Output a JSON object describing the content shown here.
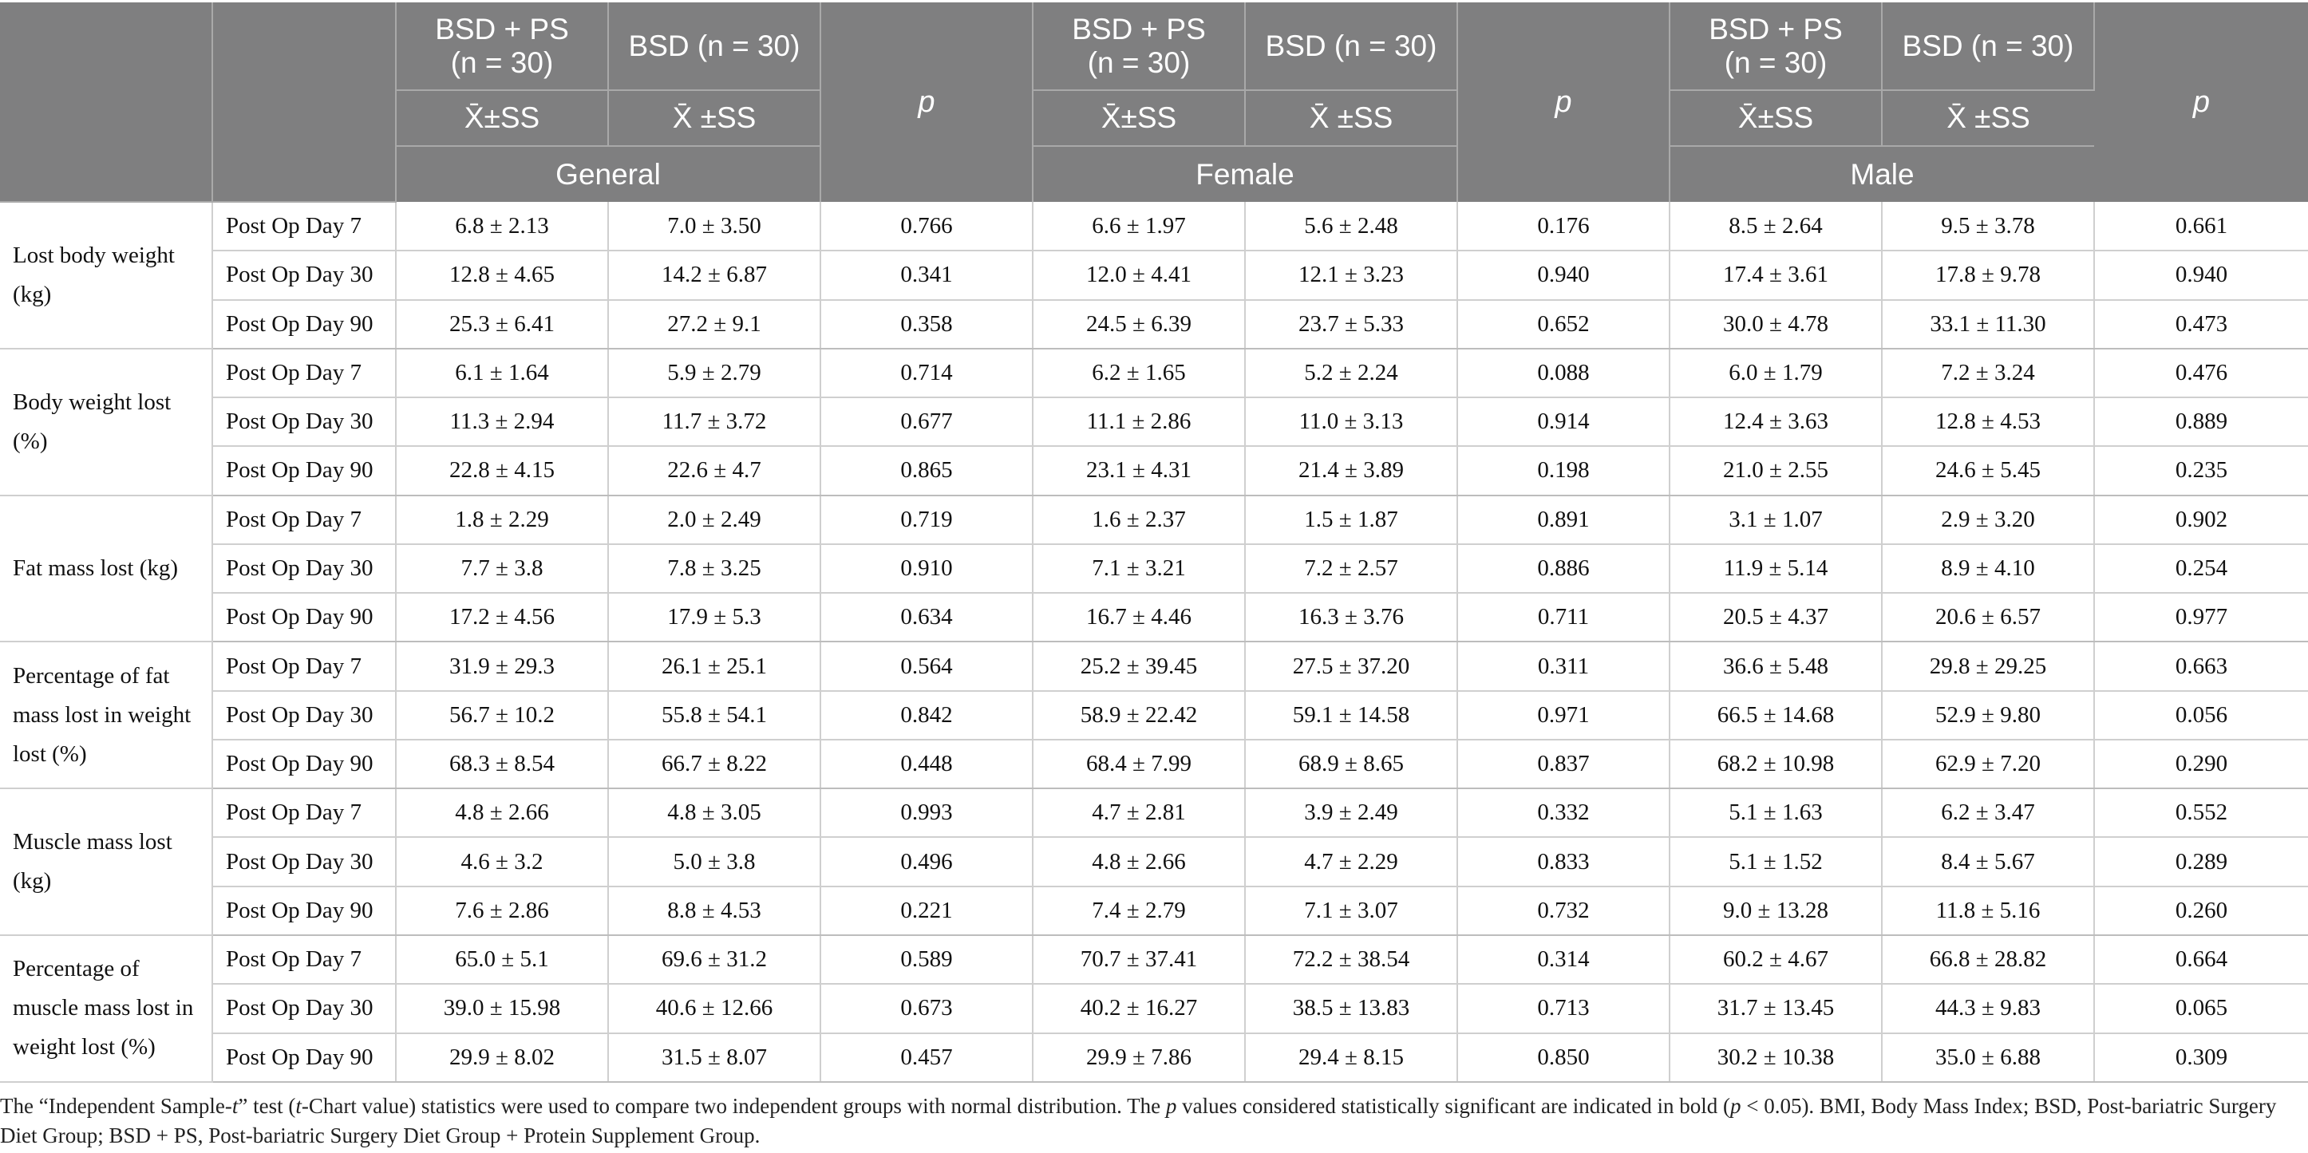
{
  "table": {
    "header": {
      "col_bsd_ps_line1": "BSD + PS",
      "col_bsd_ps_line2": "(n = 30)",
      "col_bsd": "BSD (n = 30)",
      "mean_sd_bsd_ps": "X̄±SS",
      "mean_sd_bsd": "X̄ ±SS",
      "p_label": "p",
      "groups": [
        "General",
        "Female",
        "Male"
      ]
    },
    "measures": [
      {
        "label": "Lost body weight (kg)",
        "rows": [
          {
            "timepoint": "Post Op Day 7",
            "values": [
              "6.8 ± 2.13",
              "7.0 ± 3.50",
              "0.766",
              "6.6 ± 1.97",
              "5.6 ± 2.48",
              "0.176",
              "8.5 ± 2.64",
              "9.5 ± 3.78",
              "0.661"
            ]
          },
          {
            "timepoint": "Post Op Day 30",
            "values": [
              "12.8 ± 4.65",
              "14.2 ± 6.87",
              "0.341",
              "12.0 ± 4.41",
              "12.1 ± 3.23",
              "0.940",
              "17.4 ± 3.61",
              "17.8 ± 9.78",
              "0.940"
            ]
          },
          {
            "timepoint": "Post Op Day 90",
            "values": [
              "25.3 ± 6.41",
              "27.2 ± 9.1",
              "0.358",
              "24.5 ± 6.39",
              "23.7 ± 5.33",
              "0.652",
              "30.0 ± 4.78",
              "33.1 ± 11.30",
              "0.473"
            ]
          }
        ]
      },
      {
        "label": "Body weight lost (%)",
        "rows": [
          {
            "timepoint": "Post Op Day 7",
            "values": [
              "6.1 ± 1.64",
              "5.9 ± 2.79",
              "0.714",
              "6.2 ± 1.65",
              "5.2 ± 2.24",
              "0.088",
              "6.0 ± 1.79",
              "7.2 ± 3.24",
              "0.476"
            ]
          },
          {
            "timepoint": "Post Op Day 30",
            "values": [
              "11.3 ± 2.94",
              "11.7 ± 3.72",
              "0.677",
              "11.1 ± 2.86",
              "11.0 ± 3.13",
              "0.914",
              "12.4 ± 3.63",
              "12.8 ± 4.53",
              "0.889"
            ]
          },
          {
            "timepoint": "Post Op Day 90",
            "values": [
              "22.8 ± 4.15",
              "22.6 ± 4.7",
              "0.865",
              "23.1 ± 4.31",
              "21.4 ± 3.89",
              "0.198",
              "21.0 ± 2.55",
              "24.6 ± 5.45",
              "0.235"
            ]
          }
        ]
      },
      {
        "label": "Fat mass lost (kg)",
        "rows": [
          {
            "timepoint": "Post Op Day 7",
            "values": [
              "1.8 ± 2.29",
              "2.0 ± 2.49",
              "0.719",
              "1.6 ± 2.37",
              "1.5 ± 1.87",
              "0.891",
              "3.1 ± 1.07",
              "2.9 ± 3.20",
              "0.902"
            ]
          },
          {
            "timepoint": "Post Op Day 30",
            "values": [
              "7.7 ± 3.8",
              "7.8 ± 3.25",
              "0.910",
              "7.1 ± 3.21",
              "7.2 ± 2.57",
              "0.886",
              "11.9 ± 5.14",
              "8.9 ± 4.10",
              "0.254"
            ]
          },
          {
            "timepoint": "Post Op Day 90",
            "values": [
              "17.2 ± 4.56",
              "17.9 ± 5.3",
              "0.634",
              "16.7 ± 4.46",
              "16.3 ± 3.76",
              "0.711",
              "20.5 ± 4.37",
              "20.6 ± 6.57",
              "0.977"
            ]
          }
        ]
      },
      {
        "label": "Percentage of fat mass lost in weight lost (%)",
        "rows": [
          {
            "timepoint": "Post Op Day 7",
            "values": [
              "31.9 ± 29.3",
              "26.1 ± 25.1",
              "0.564",
              "25.2 ± 39.45",
              "27.5 ± 37.20",
              "0.311",
              "36.6 ± 5.48",
              "29.8 ± 29.25",
              "0.663"
            ]
          },
          {
            "timepoint": "Post Op Day 30",
            "values": [
              "56.7 ± 10.2",
              "55.8 ± 54.1",
              "0.842",
              "58.9 ± 22.42",
              "59.1 ± 14.58",
              "0.971",
              "66.5 ± 14.68",
              "52.9 ± 9.80",
              "0.056"
            ]
          },
          {
            "timepoint": "Post Op Day 90",
            "values": [
              "68.3 ± 8.54",
              "66.7 ± 8.22",
              "0.448",
              "68.4 ± 7.99",
              "68.9 ± 8.65",
              "0.837",
              "68.2 ± 10.98",
              "62.9 ± 7.20",
              "0.290"
            ]
          }
        ]
      },
      {
        "label": "Muscle mass lost (kg)",
        "rows": [
          {
            "timepoint": "Post Op Day 7",
            "values": [
              "4.8 ± 2.66",
              "4.8 ± 3.05",
              "0.993",
              "4.7 ± 2.81",
              "3.9 ± 2.49",
              "0.332",
              "5.1 ± 1.63",
              "6.2 ± 3.47",
              "0.552"
            ]
          },
          {
            "timepoint": "Post Op Day 30",
            "values": [
              "4.6 ± 3.2",
              "5.0 ± 3.8",
              "0.496",
              "4.8 ± 2.66",
              "4.7 ± 2.29",
              "0.833",
              "5.1 ± 1.52",
              "8.4 ± 5.67",
              "0.289"
            ]
          },
          {
            "timepoint": "Post Op Day 90",
            "values": [
              "7.6 ± 2.86",
              "8.8 ± 4.53",
              "0.221",
              "7.4 ± 2.79",
              "7.1 ± 3.07",
              "0.732",
              "9.0 ± 13.28",
              "11.8 ± 5.16",
              "0.260"
            ]
          }
        ]
      },
      {
        "label": "Percentage of muscle mass lost in weight lost (%)",
        "rows": [
          {
            "timepoint": "Post Op Day 7",
            "values": [
              "65.0 ± 5.1",
              "69.6 ± 31.2",
              "0.589",
              "70.7 ± 37.41",
              "72.2 ± 38.54",
              "0.314",
              "60.2 ± 4.67",
              "66.8 ± 28.82",
              "0.664"
            ]
          },
          {
            "timepoint": "Post Op Day 30",
            "values": [
              "39.0 ± 15.98",
              "40.6 ± 12.66",
              "0.673",
              "40.2 ± 16.27",
              "38.5 ± 13.83",
              "0.713",
              "31.7 ± 13.45",
              "44.3 ± 9.83",
              "0.065"
            ]
          },
          {
            "timepoint": "Post Op Day 90",
            "values": [
              "29.9 ± 8.02",
              "31.5 ± 8.07",
              "0.457",
              "29.9 ± 7.86",
              "29.4 ± 8.15",
              "0.850",
              "30.2 ± 10.38",
              "35.0 ± 6.88",
              "0.309"
            ]
          }
        ]
      }
    ]
  },
  "footnote": {
    "part1": "The “Independent Sample-",
    "t_italic": "t",
    "part2": "” test (",
    "t_italic2": "t",
    "part3": "-Chart value) statistics were used to compare two independent groups with normal distribution. The ",
    "p_italic": "p",
    "part4": " values considered statistically significant are indicated in bold (",
    "p_italic2": "p",
    "part5": " < 0.05). BMI, Body Mass Index; BSD, Post-bariatric Surgery Diet Group; BSD + PS, Post-bariatric Surgery Diet Group + Protein Supplement Group."
  },
  "colors": {
    "header_bg": "#7f7f80",
    "header_text": "#ffffff",
    "grid": "#cfcfcf"
  }
}
